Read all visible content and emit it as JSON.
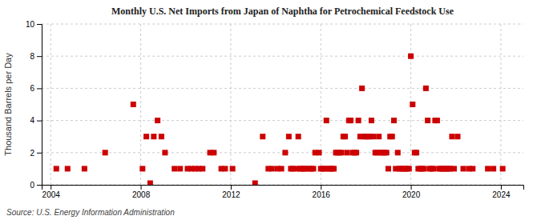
{
  "chart_data": {
    "type": "scatter",
    "title": "Monthly U.S. Net Imports from Japan of Naphtha for Petrochemical Feedstock Use",
    "ylabel": "Thousand Barrels per Day",
    "annotation": "Source: U.S. Energy Information Administration",
    "color": "#cc0000",
    "marker": "square",
    "grid": true,
    "xlim": [
      2003.6,
      2025.0
    ],
    "xticks": [
      2004,
      2008,
      2012,
      2016,
      2020,
      2024
    ],
    "ylim": [
      0,
      10
    ],
    "yticks": [
      0,
      2,
      4,
      6,
      8,
      10
    ],
    "x": [
      2004.25,
      2004.75,
      2005.5,
      2006.42,
      2007.67,
      2008.08,
      2008.25,
      2008.42,
      2008.58,
      2008.75,
      2008.92,
      2009.08,
      2009.5,
      2009.75,
      2010.08,
      2010.25,
      2010.42,
      2010.58,
      2010.75,
      2011.08,
      2011.25,
      2011.58,
      2011.75,
      2012.08,
      2013.08,
      2013.42,
      2013.67,
      2013.83,
      2014.08,
      2014.25,
      2014.42,
      2014.58,
      2014.67,
      2014.75,
      2014.92,
      2015.0,
      2015.08,
      2015.17,
      2015.25,
      2015.33,
      2015.5,
      2015.58,
      2015.67,
      2015.75,
      2015.92,
      2016.0,
      2016.08,
      2016.17,
      2016.25,
      2016.33,
      2016.42,
      2016.5,
      2016.58,
      2016.67,
      2016.75,
      2016.83,
      2016.92,
      2017.0,
      2017.08,
      2017.17,
      2017.25,
      2017.33,
      2017.42,
      2017.5,
      2017.58,
      2017.67,
      2017.75,
      2017.83,
      2017.92,
      2018.0,
      2018.08,
      2018.17,
      2018.25,
      2018.33,
      2018.42,
      2018.5,
      2018.58,
      2018.67,
      2018.75,
      2018.83,
      2018.92,
      2019.0,
      2019.08,
      2019.17,
      2019.25,
      2019.33,
      2019.42,
      2019.5,
      2019.58,
      2019.67,
      2019.75,
      2019.83,
      2019.92,
      2020.0,
      2020.08,
      2020.17,
      2020.25,
      2020.33,
      2020.42,
      2020.5,
      2020.58,
      2020.67,
      2020.75,
      2020.83,
      2020.92,
      2021.0,
      2021.08,
      2021.17,
      2021.25,
      2021.33,
      2021.42,
      2021.5,
      2021.58,
      2021.67,
      2021.75,
      2021.83,
      2021.92,
      2022.08,
      2022.33,
      2022.58,
      2022.75,
      2023.42,
      2023.67,
      2024.08
    ],
    "values": [
      1,
      1,
      1,
      2,
      5,
      1,
      3,
      0.1,
      3,
      4,
      3,
      2,
      1,
      1,
      1,
      1,
      1,
      1,
      1,
      2,
      2,
      1,
      1,
      1,
      0.1,
      3,
      1,
      1,
      1,
      1,
      2,
      3,
      1,
      1,
      1,
      3,
      1,
      1,
      1,
      1,
      1,
      1,
      1,
      2,
      2,
      1,
      1,
      1,
      4,
      1,
      1,
      1,
      1,
      2,
      2,
      2,
      2,
      3,
      3,
      2,
      4,
      4,
      2,
      2,
      2,
      4,
      3,
      6,
      3,
      3,
      3,
      3,
      4,
      3,
      2,
      2,
      3,
      2,
      2,
      2,
      2,
      1,
      3,
      3,
      4,
      1,
      2,
      1,
      1,
      1,
      1,
      1,
      1,
      8,
      5,
      2,
      2,
      1,
      1,
      1,
      1,
      6,
      4,
      1,
      1,
      1,
      4,
      4,
      1,
      1,
      1,
      1,
      1,
      1,
      1,
      3,
      1,
      3,
      1,
      1,
      1,
      1,
      1,
      1
    ]
  }
}
